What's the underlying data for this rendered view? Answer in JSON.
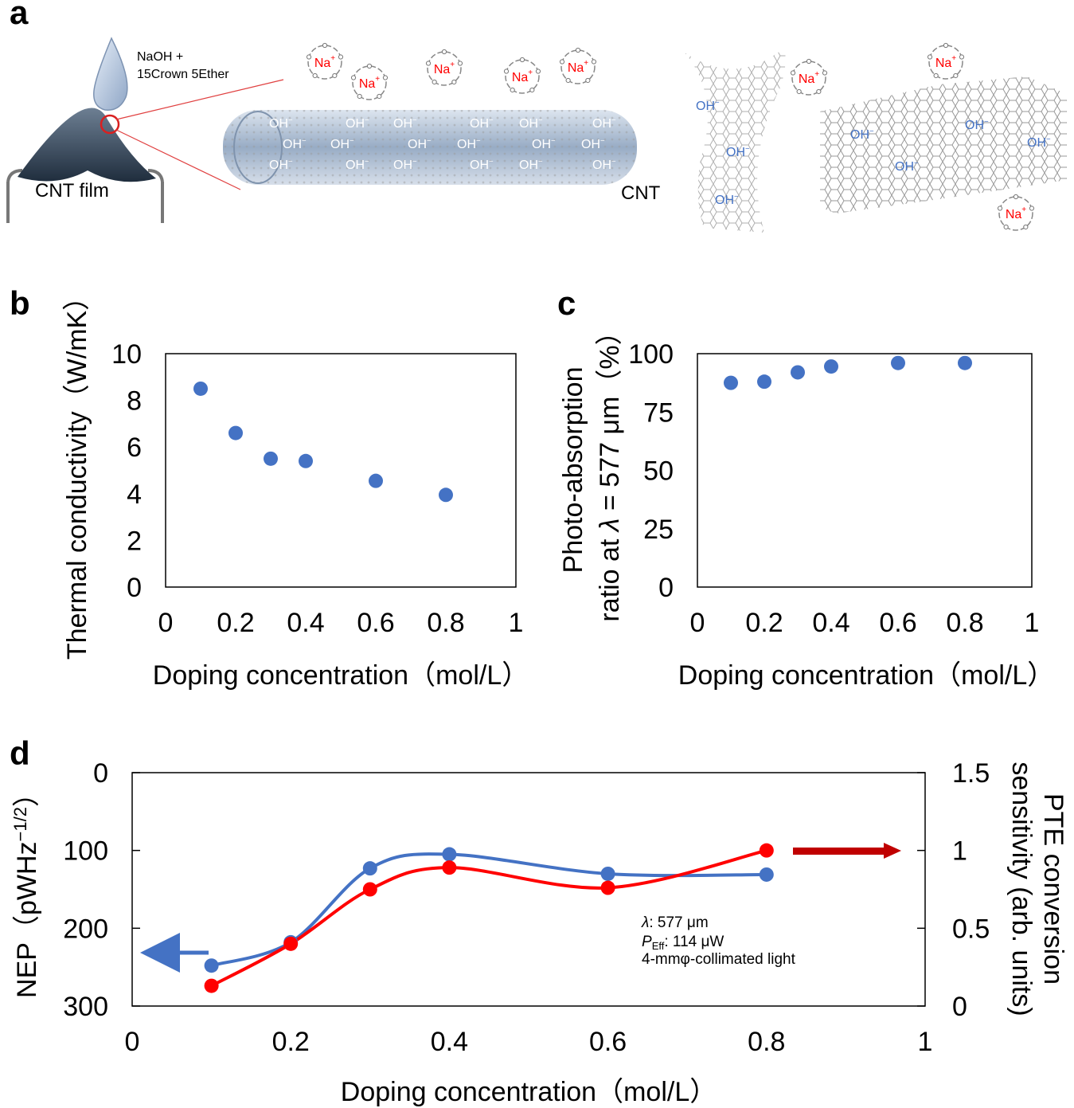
{
  "panel_labels": {
    "a": "a",
    "b": "b",
    "c": "c",
    "d": "d"
  },
  "schematic": {
    "reagent_line1": "NaOH +",
    "reagent_line2": "15Crown 5Ether",
    "film_label": "CNT film",
    "cnt_label": "CNT",
    "cation": "Na",
    "cation_charge": "+",
    "anion": "OH",
    "anion_charge": "−"
  },
  "colors": {
    "blue": "#4472c4",
    "red": "#ff0000",
    "dark_red": "#c00000",
    "axis": "#000000",
    "tube": "#9fb2c9",
    "sheet": "#8c8c8c"
  },
  "chart_data": [
    {
      "panel": "b",
      "type": "scatter",
      "x": [
        0.1,
        0.2,
        0.3,
        0.4,
        0.6,
        0.8
      ],
      "y": [
        8.5,
        6.6,
        5.5,
        5.4,
        4.55,
        3.95
      ],
      "xlabel": "Doping concentration（mol/L）",
      "ylabel": "Thermal conductivity（W/mK）",
      "xlim": [
        0,
        1
      ],
      "ylim": [
        0,
        10
      ],
      "xticks": [
        "0",
        "0.2",
        "0.4",
        "0.6",
        "0.8",
        "1"
      ],
      "yticks": [
        "0",
        "2",
        "4",
        "6",
        "8",
        "10"
      ],
      "grid": false
    },
    {
      "panel": "c",
      "type": "scatter",
      "x": [
        0.1,
        0.2,
        0.3,
        0.4,
        0.6,
        0.8
      ],
      "y": [
        87.5,
        88,
        92,
        94.5,
        96,
        96
      ],
      "xlabel": "Doping concentration（mol/L）",
      "ylabel_line1": "Photo-absorption",
      "ylabel_line2_pre": "ratio at ",
      "ylabel_lambda": "λ",
      "ylabel_line2_post": " = 577 μm（%）",
      "xlim": [
        0,
        1
      ],
      "ylim": [
        0,
        100
      ],
      "xticks": [
        "0",
        "0.2",
        "0.4",
        "0.6",
        "0.8",
        "1"
      ],
      "yticks": [
        "0",
        "25",
        "50",
        "75",
        "100"
      ],
      "grid": false
    },
    {
      "panel": "d",
      "type": "line",
      "x": [
        0.1,
        0.2,
        0.3,
        0.4,
        0.6,
        0.8
      ],
      "series": [
        {
          "name": "NEP",
          "axis": "left",
          "color": "blue",
          "values": [
            248,
            218,
            123,
            105,
            130,
            131
          ]
        },
        {
          "name": "PTE conversion sensitivity",
          "axis": "right",
          "color": "red",
          "values": [
            0.13,
            0.4,
            0.75,
            0.89,
            0.76,
            1.0
          ]
        }
      ],
      "xlabel": "Doping concentration（mol/L）",
      "ylabel_left_pre": "NEP（pWHz",
      "ylabel_left_sup": "−1/2",
      "ylabel_left_post": "）",
      "ylabel_right_line1": "PTE conversion",
      "ylabel_right_line2": "sensitivity (arb. units)",
      "xlim": [
        0,
        1
      ],
      "ylim_left": [
        300,
        0
      ],
      "ylim_right": [
        0,
        1.5
      ],
      "xticks": [
        "0",
        "0.2",
        "0.4",
        "0.6",
        "0.8",
        "1"
      ],
      "yticks_left": [
        "0",
        "100",
        "200",
        "300"
      ],
      "yticks_right": [
        "1.5",
        "1",
        "0.5",
        "0"
      ],
      "annotation": {
        "lambda_symbol": "λ",
        "lambda_value": ": 577 μm",
        "power_symbol": "P",
        "power_sub": "Eff",
        "power_value": ": 114 μW",
        "light": "4-mmφ-collimated light"
      },
      "grid": false
    }
  ]
}
